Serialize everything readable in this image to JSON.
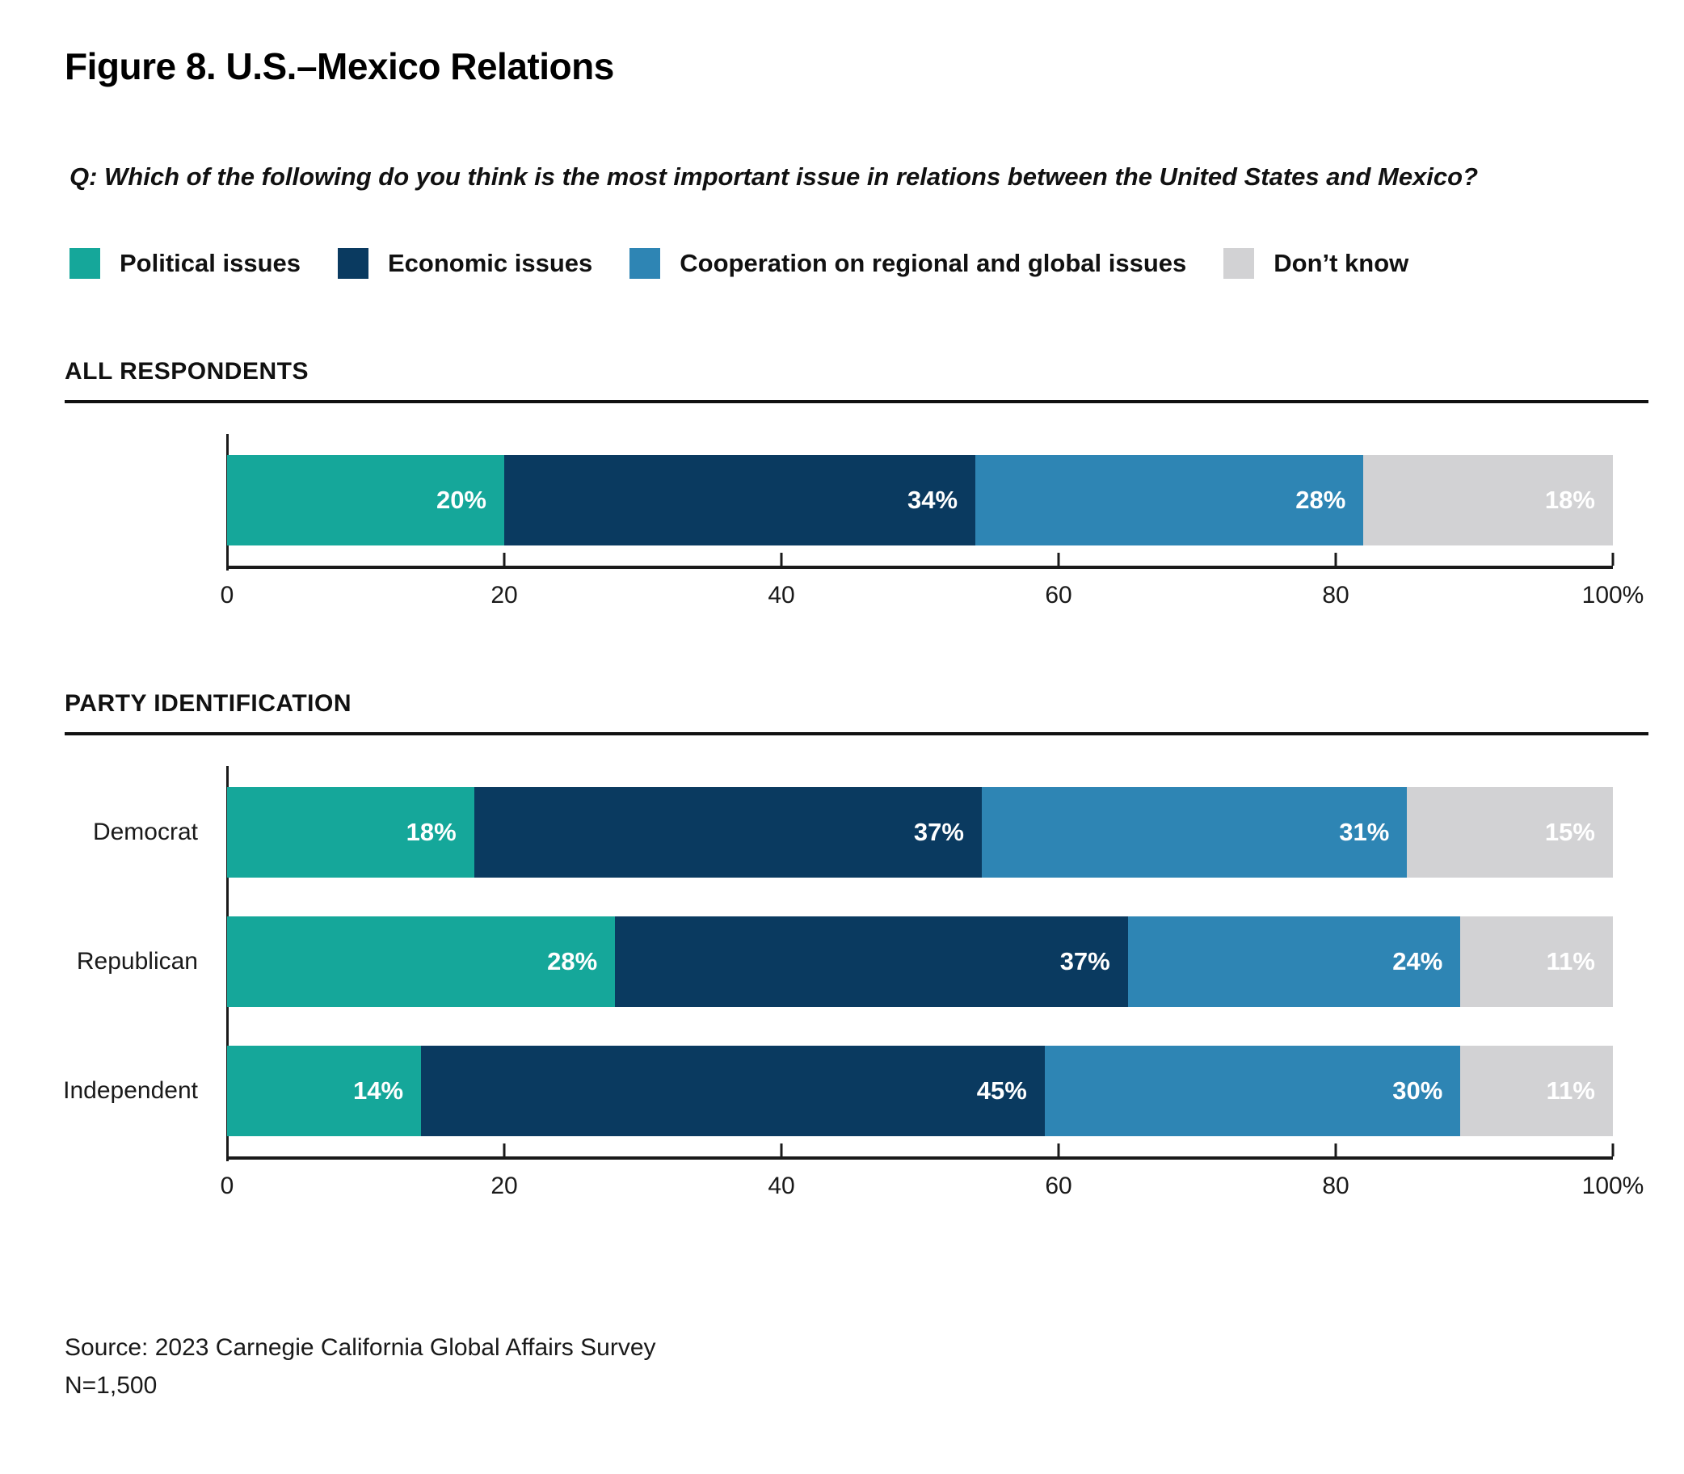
{
  "title": "Figure 8. U.S.–Mexico Relations",
  "question": "Q: Which of the following do you think is the most important issue in relations between the United States and Mexico?",
  "legend": [
    {
      "label": "Political issues",
      "color": "#15A79A"
    },
    {
      "label": "Economic issues",
      "color": "#0A3A60"
    },
    {
      "label": "Cooperation on regional and global issues",
      "color": "#2E85B4"
    },
    {
      "label": "Don’t know",
      "color": "#D2D2D4"
    }
  ],
  "source": {
    "line1": "Source: 2023 Carnegie California Global Affairs Survey",
    "line2": "N=1,500"
  },
  "chart_data": {
    "type": "bar",
    "stacked": true,
    "orientation": "horizontal",
    "title": "Figure 8. U.S.–Mexico Relations",
    "xlabel": "",
    "ylabel": "",
    "xlim": [
      0,
      100
    ],
    "x_ticks": [
      "0",
      "20",
      "40",
      "60",
      "80",
      "100%"
    ],
    "grid": false,
    "legend_position": "top",
    "series_names": [
      "Political issues",
      "Economic issues",
      "Cooperation on regional and global issues",
      "Don’t know"
    ],
    "colors": [
      "#15A79A",
      "#0A3A60",
      "#2E85B4",
      "#D2D2D4"
    ],
    "value_suffix": "%",
    "panels": [
      {
        "section_label": "ALL RESPONDENTS",
        "rows": [
          {
            "label": "",
            "values": [
              20,
              34,
              28,
              18
            ]
          }
        ]
      },
      {
        "section_label": "PARTY IDENTIFICATION",
        "rows": [
          {
            "label": "Democrat",
            "values": [
              18,
              37,
              31,
              15
            ]
          },
          {
            "label": "Republican",
            "values": [
              28,
              37,
              24,
              11
            ]
          },
          {
            "label": "Independent",
            "values": [
              14,
              45,
              30,
              11
            ]
          }
        ]
      }
    ]
  }
}
